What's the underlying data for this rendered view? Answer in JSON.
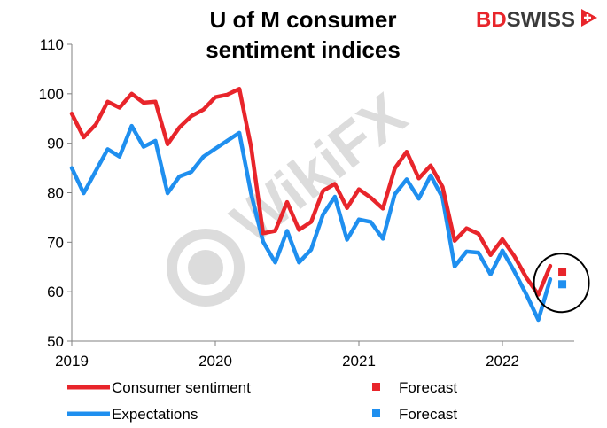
{
  "brand": {
    "bd": "BD",
    "swiss": "SWISS",
    "bd_color": "#e8252b",
    "swiss_color": "#3a3a3a"
  },
  "watermark": {
    "text": "WikiFX",
    "color": "#d9d9d9"
  },
  "chart_data": {
    "type": "line",
    "title": "U of M consumer sentiment indices",
    "title_lines": [
      "U of M consumer",
      "sentiment indices"
    ],
    "xlabel": "",
    "ylabel": "",
    "ylim": [
      50,
      110
    ],
    "yticks": [
      50,
      60,
      70,
      80,
      90,
      100,
      110
    ],
    "xlim": [
      2019.0,
      2022.5
    ],
    "xticks": [
      {
        "value": 2019,
        "label": "2019"
      },
      {
        "value": 2020,
        "label": "2020"
      },
      {
        "value": 2021,
        "label": "2021"
      },
      {
        "value": 2022,
        "label": "2022"
      }
    ],
    "grid": false,
    "legend_position": "bottom",
    "x": [
      2019.0,
      2019.083,
      2019.167,
      2019.25,
      2019.333,
      2019.417,
      2019.5,
      2019.583,
      2019.667,
      2019.75,
      2019.833,
      2019.917,
      2020.0,
      2020.083,
      2020.167,
      2020.25,
      2020.333,
      2020.417,
      2020.5,
      2020.583,
      2020.667,
      2020.75,
      2020.833,
      2020.917,
      2021.0,
      2021.083,
      2021.167,
      2021.25,
      2021.333,
      2021.417,
      2021.5,
      2021.583,
      2021.667,
      2021.75,
      2021.833,
      2021.917,
      2022.0,
      2022.083,
      2022.167,
      2022.25,
      2022.333
    ],
    "series": [
      {
        "name": "Consumer sentiment",
        "color": "#e8252b",
        "values": [
          96.0,
          91.2,
          93.8,
          98.4,
          97.2,
          100.0,
          98.2,
          98.4,
          89.8,
          93.2,
          95.5,
          96.8,
          99.3,
          99.8,
          101.0,
          89.1,
          71.8,
          72.3,
          78.1,
          72.5,
          74.1,
          80.4,
          81.8,
          76.9,
          80.7,
          79.0,
          76.8,
          84.9,
          88.3,
          82.9,
          85.5,
          81.2,
          70.3,
          72.8,
          71.7,
          67.4,
          70.6,
          67.2,
          62.8,
          59.4,
          65.2
        ]
      },
      {
        "name": "Expectations",
        "color": "#1f8fef",
        "values": [
          85.0,
          79.9,
          84.4,
          88.8,
          87.3,
          93.5,
          89.3,
          90.5,
          79.9,
          83.3,
          84.2,
          87.3,
          88.9,
          90.5,
          92.1,
          79.7,
          70.1,
          65.9,
          72.3,
          65.9,
          68.5,
          75.6,
          79.2,
          70.5,
          74.6,
          74.1,
          70.7,
          79.7,
          82.7,
          78.8,
          83.5,
          79.0,
          65.1,
          68.1,
          67.9,
          63.5,
          68.3,
          64.1,
          59.4,
          54.3,
          62.5
        ]
      }
    ],
    "forecast": [
      {
        "name": "Forecast",
        "series": "Consumer sentiment",
        "x": 2022.417,
        "value": 64.0,
        "color": "#e8252b"
      },
      {
        "name": "Forecast",
        "series": "Expectations",
        "x": 2022.417,
        "value": 61.5,
        "color": "#1f8fef"
      }
    ],
    "annotation": {
      "type": "circle",
      "x": 2022.417,
      "value": 62.5,
      "color": "#000000"
    }
  }
}
